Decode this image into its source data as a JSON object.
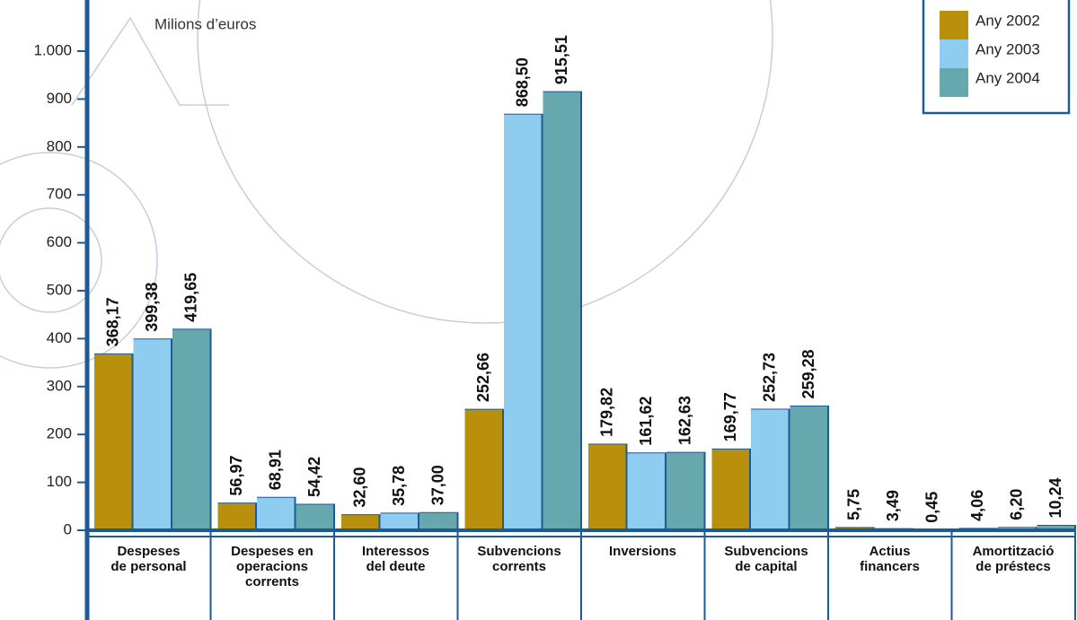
{
  "chart_data": {
    "type": "bar",
    "unit_label": "Milions d’euros",
    "categories": [
      "Despeses\nde personal",
      "Despeses en\noperacions\ncorrents",
      "Interessos\ndel deute",
      "Subvencions\ncorrents",
      "Inversions",
      "Subvencions\nde capital",
      "Actius\nfinancers",
      "Amortització\nde préstecs"
    ],
    "series": [
      {
        "name": "Any 2002",
        "color": "#b8900c",
        "values": [
          368.17,
          56.97,
          32.6,
          252.66,
          179.82,
          169.77,
          5.75,
          4.06
        ],
        "value_labels": [
          "368,17",
          "56,97",
          "32,60",
          "252,66",
          "179,82",
          "169,77",
          "5,75",
          "4,06"
        ]
      },
      {
        "name": "Any 2003",
        "color": "#8ecdf0",
        "values": [
          399.38,
          68.91,
          35.78,
          868.5,
          161.62,
          252.73,
          3.49,
          6.2
        ],
        "value_labels": [
          "399,38",
          "68,91",
          "35,78",
          "868,50",
          "161,62",
          "252,73",
          "3,49",
          "6,20"
        ]
      },
      {
        "name": "Any 2004",
        "color": "#67a8ae",
        "values": [
          419.65,
          54.42,
          37.0,
          915.51,
          162.63,
          259.28,
          0.45,
          10.24
        ],
        "value_labels": [
          "419,65",
          "54,42",
          "37,00",
          "915,51",
          "162,63",
          "259,28",
          "0,45",
          "10,24"
        ]
      }
    ],
    "ylim": [
      0,
      1100
    ],
    "yticks": [
      0,
      100,
      200,
      300,
      400,
      500,
      600,
      700,
      800,
      900,
      {
        "value": 1000,
        "label": "1.000"
      }
    ],
    "legend": "top-right"
  }
}
